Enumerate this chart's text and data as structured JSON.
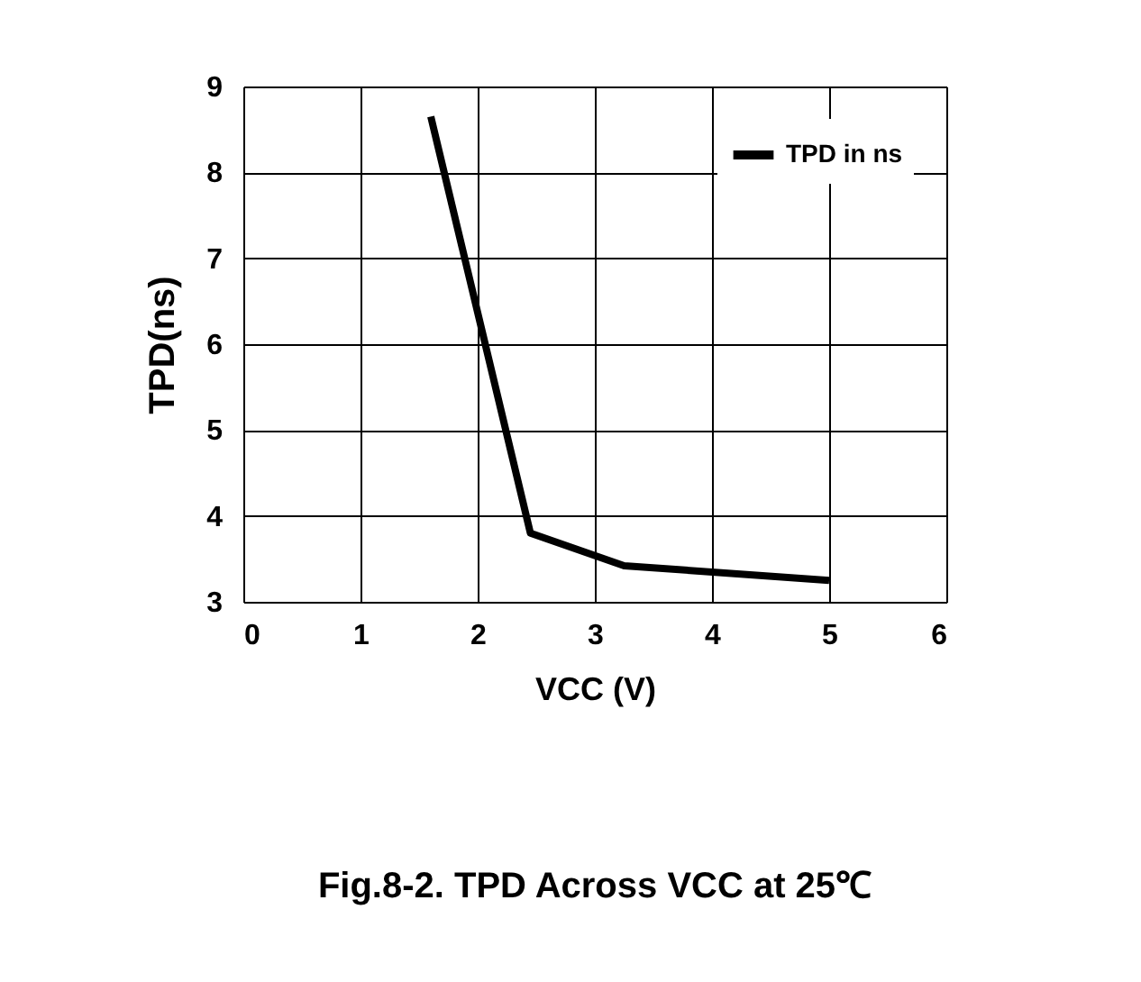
{
  "chart_data": {
    "type": "line",
    "title": "Fig.8-2. TPD Across VCC at 25℃",
    "xlabel": "VCC (V)",
    "ylabel": "TPD(ns)",
    "x": [
      1.6,
      2.45,
      3.25,
      5
    ],
    "series": [
      {
        "name": "TPD in ns",
        "color": "#000000",
        "values": [
          8.65,
          3.8,
          3.42,
          3.25
        ]
      }
    ],
    "xlim": [
      0,
      6
    ],
    "xticks": [
      0,
      1,
      2,
      3,
      4,
      5,
      6
    ],
    "ylim": [
      3,
      9
    ],
    "yticks": [
      3,
      4,
      5,
      6,
      7,
      8,
      9
    ],
    "grid": true,
    "legend": "top right",
    "marker": "none",
    "line_style": "solid"
  }
}
